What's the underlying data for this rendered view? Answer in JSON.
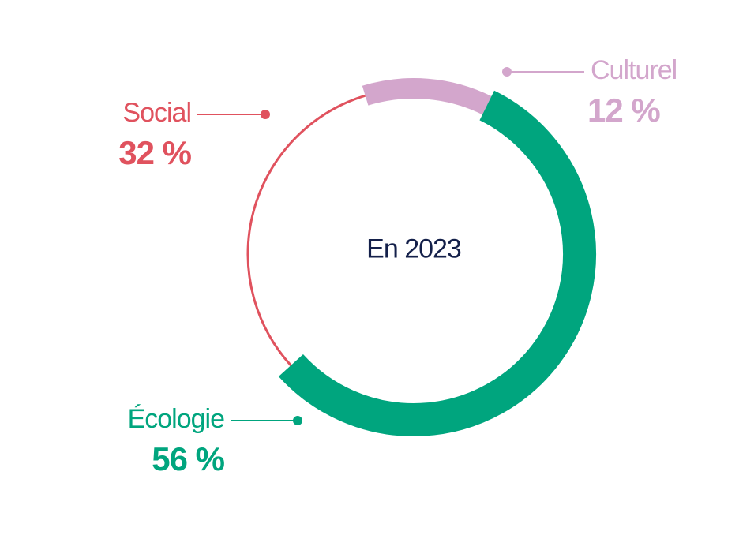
{
  "chart_data": {
    "type": "pie",
    "center_label": "En 2023",
    "slices": [
      {
        "name": "Culturel",
        "value": 12,
        "label": "12 %",
        "color": "#d3a6cc"
      },
      {
        "name": "Écologie",
        "value": 56,
        "label": "56 %",
        "color": "#00a57e"
      },
      {
        "name": "Social",
        "value": 32,
        "label": "32 %",
        "color": "#e0525e"
      }
    ]
  }
}
